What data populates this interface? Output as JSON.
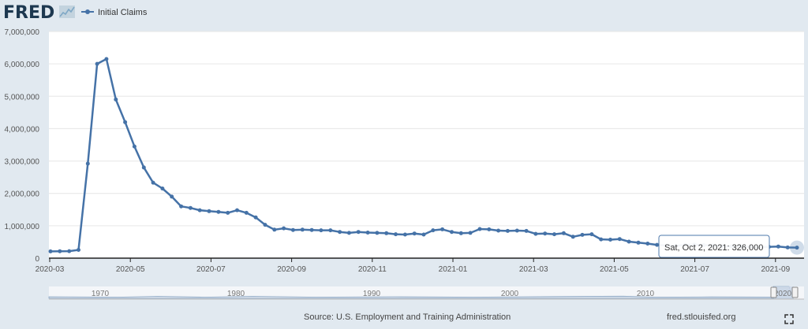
{
  "logo": {
    "text": "FRED",
    "icon": "fred-chart-logo"
  },
  "legend": {
    "label": "Initial Claims"
  },
  "source": "Source: U.S. Employment and Training Administration",
  "site": "fred.stlouisfed.org",
  "colors": {
    "line": "#4572a7",
    "background": "#e1e9f0",
    "plot": "#ffffff",
    "grid": "#e6e6e6",
    "navigator_fill": "#d6dfea"
  },
  "tooltip": {
    "date": "Sat, Oct 2, 2021:",
    "value": "326,000"
  },
  "navigator": {
    "labels": [
      "1970",
      "1980",
      "1990",
      "2000",
      "2010",
      "2020"
    ]
  },
  "chart_data": {
    "type": "line",
    "title": "",
    "xlabel": "",
    "ylabel": "",
    "ylim": [
      0,
      7000000
    ],
    "grid": true,
    "legend_position": "top-left",
    "x_tick_labels": [
      "2020-03",
      "2020-05",
      "2020-07",
      "2020-09",
      "2020-11",
      "2021-01",
      "2021-03",
      "2021-05",
      "2021-07",
      "2021-09"
    ],
    "y_tick_labels": [
      "0",
      "1,000,000",
      "2,000,000",
      "3,000,000",
      "4,000,000",
      "5,000,000",
      "6,000,000",
      "7,000,000"
    ],
    "y_ticks": [
      0,
      1000000,
      2000000,
      3000000,
      4000000,
      5000000,
      6000000,
      7000000
    ],
    "series": [
      {
        "name": "Initial Claims",
        "values": [
          210000,
          215000,
          217000,
          255000,
          2920000,
          6000000,
          6150000,
          4900000,
          4200000,
          3450000,
          2800000,
          2330000,
          2150000,
          1900000,
          1600000,
          1550000,
          1480000,
          1450000,
          1430000,
          1400000,
          1480000,
          1400000,
          1260000,
          1030000,
          880000,
          920000,
          870000,
          880000,
          870000,
          860000,
          860000,
          810000,
          780000,
          810000,
          790000,
          780000,
          770000,
          740000,
          730000,
          760000,
          730000,
          860000,
          890000,
          810000,
          770000,
          780000,
          900000,
          890000,
          850000,
          840000,
          850000,
          840000,
          750000,
          760000,
          740000,
          770000,
          660000,
          720000,
          740000,
          580000,
          570000,
          590000,
          510000,
          480000,
          450000,
          410000,
          390000,
          380000,
          410000,
          420000,
          400000,
          390000,
          370000,
          360000,
          370000,
          350000,
          340000,
          350000,
          360000,
          330000,
          326000
        ]
      }
    ]
  }
}
